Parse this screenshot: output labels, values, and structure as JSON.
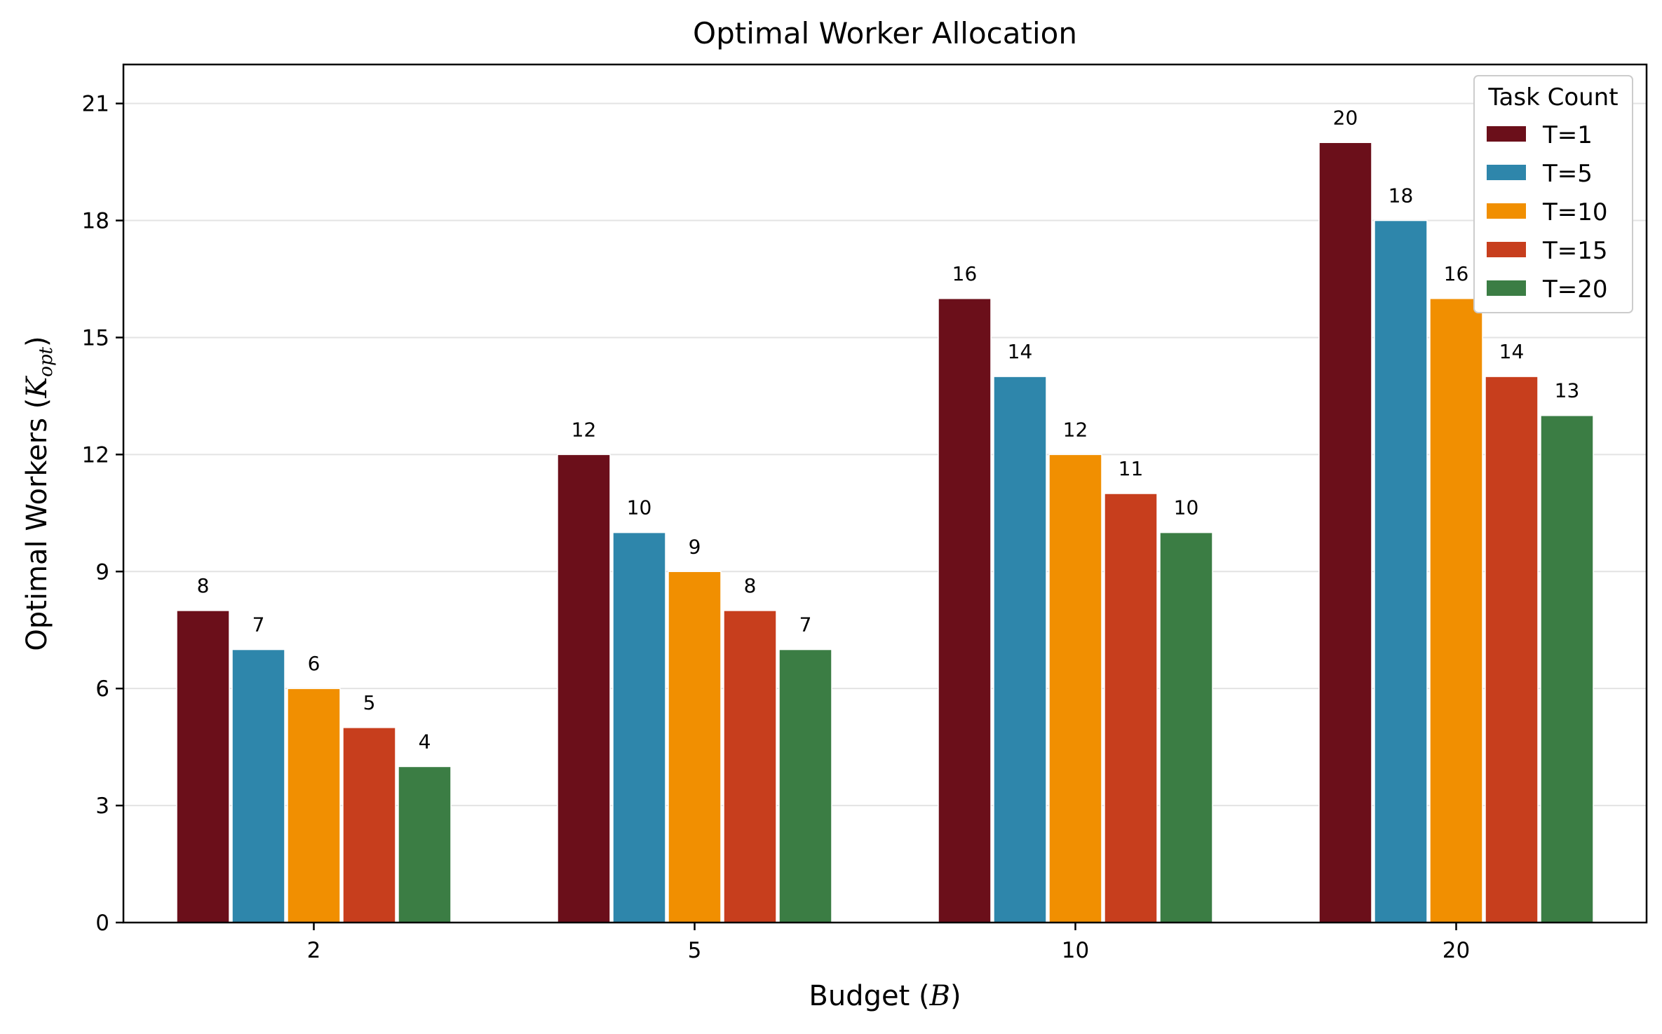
{
  "chart_data": {
    "type": "bar",
    "title": "Optimal Worker Allocation",
    "xlabel": {
      "prefix": "Budget (",
      "math": "B",
      "suffix": ")"
    },
    "ylabel": {
      "prefix": "Optimal Workers (",
      "math": "K",
      "math_sub": "opt",
      "suffix": ")"
    },
    "categories": [
      "2",
      "5",
      "10",
      "20"
    ],
    "ylim": [
      0,
      22
    ],
    "yticks": [
      0,
      3,
      6,
      9,
      12,
      15,
      18,
      21
    ],
    "grid": "y",
    "legend": {
      "title": "Task Count",
      "placement": "top-right"
    },
    "series": [
      {
        "name": "T=1",
        "color": "#6b0f1a",
        "values": [
          8,
          12,
          16,
          20
        ]
      },
      {
        "name": "T=5",
        "color": "#2e86ab",
        "values": [
          7,
          10,
          14,
          18
        ]
      },
      {
        "name": "T=10",
        "color": "#f18f01",
        "values": [
          6,
          9,
          12,
          16
        ]
      },
      {
        "name": "T=15",
        "color": "#c73e1d",
        "values": [
          5,
          8,
          11,
          14
        ]
      },
      {
        "name": "T=20",
        "color": "#3b7d44",
        "values": [
          4,
          7,
          10,
          13
        ]
      }
    ]
  }
}
